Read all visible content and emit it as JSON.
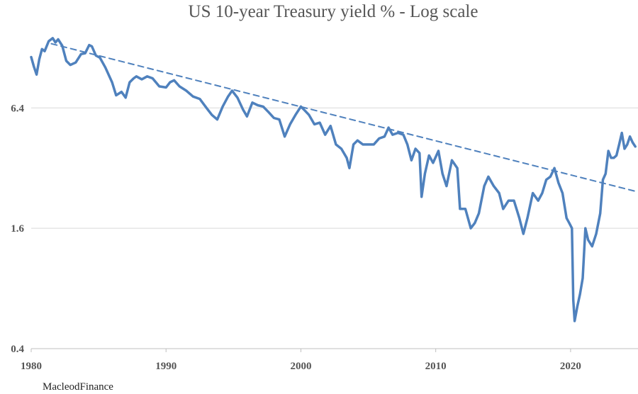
{
  "chart_data": {
    "type": "line",
    "title": "US 10-year Treasury yield % - Log scale",
    "xlabel": "",
    "ylabel": "",
    "y_scale": "log2",
    "xlim": [
      1980,
      2025
    ],
    "ylim": [
      0.4,
      16
    ],
    "x_ticks": [
      "1980",
      "1990",
      "2000",
      "2010",
      "2020"
    ],
    "y_ticks": [
      "0.4",
      "1.6",
      "6.4"
    ],
    "grid": "horizontal",
    "colors": {
      "series": "#4F81BD",
      "trend": "#4F81BD",
      "grid": "#D9D9D9",
      "axis": "#BFBFBF"
    },
    "series": [
      {
        "style": "solid",
        "x": [
          1980.0,
          1980.2,
          1980.4,
          1980.6,
          1980.8,
          1981.0,
          1981.3,
          1981.6,
          1981.8,
          1982.0,
          1982.3,
          1982.6,
          1982.9,
          1983.3,
          1983.7,
          1984.0,
          1984.3,
          1984.5,
          1984.8,
          1985.1,
          1985.5,
          1986.0,
          1986.3,
          1986.7,
          1987.0,
          1987.3,
          1987.6,
          1987.8,
          1988.2,
          1988.6,
          1989.0,
          1989.5,
          1990.0,
          1990.3,
          1990.6,
          1991.0,
          1991.5,
          1992.0,
          1992.5,
          1993.0,
          1993.4,
          1993.8,
          1994.2,
          1994.6,
          1994.9,
          1995.3,
          1995.7,
          1996.0,
          1996.4,
          1996.8,
          1997.2,
          1997.6,
          1998.0,
          1998.4,
          1998.8,
          1999.2,
          1999.6,
          2000.0,
          2000.3,
          2000.6,
          2001.0,
          2001.4,
          2001.8,
          2002.2,
          2002.6,
          2003.0,
          2003.4,
          2003.6,
          2003.9,
          2004.2,
          2004.6,
          2005.0,
          2005.4,
          2005.8,
          2006.2,
          2006.5,
          2006.8,
          2007.2,
          2007.6,
          2007.9,
          2008.2,
          2008.5,
          2008.8,
          2008.95,
          2009.2,
          2009.5,
          2009.8,
          2010.2,
          2010.5,
          2010.8,
          2011.2,
          2011.6,
          2011.8,
          2012.2,
          2012.6,
          2012.9,
          2013.2,
          2013.6,
          2013.9,
          2014.3,
          2014.7,
          2015.0,
          2015.4,
          2015.8,
          2016.2,
          2016.5,
          2016.8,
          2017.2,
          2017.6,
          2017.9,
          2018.2,
          2018.5,
          2018.8,
          2019.1,
          2019.4,
          2019.7,
          2019.9,
          2020.1,
          2020.2,
          2020.3,
          2020.5,
          2020.7,
          2020.9,
          2021.1,
          2021.3,
          2021.6,
          2021.9,
          2022.2,
          2022.4,
          2022.6,
          2022.8,
          2023.0,
          2023.2,
          2023.4,
          2023.6,
          2023.8,
          2024.0,
          2024.2,
          2024.4,
          2024.6,
          2024.8
        ],
        "values": [
          11.5,
          10.3,
          9.4,
          11.2,
          12.6,
          12.3,
          13.8,
          14.3,
          13.6,
          14.1,
          13.1,
          11.0,
          10.5,
          10.8,
          11.9,
          12.0,
          13.2,
          13.0,
          11.7,
          11.4,
          10.2,
          8.6,
          7.4,
          7.7,
          7.2,
          8.6,
          9.0,
          9.2,
          8.9,
          9.2,
          9.0,
          8.2,
          8.1,
          8.6,
          8.8,
          8.2,
          7.8,
          7.3,
          7.1,
          6.4,
          5.9,
          5.6,
          6.5,
          7.3,
          7.8,
          7.2,
          6.3,
          5.8,
          6.8,
          6.6,
          6.5,
          6.1,
          5.7,
          5.6,
          4.6,
          5.3,
          5.9,
          6.5,
          6.2,
          5.9,
          5.3,
          5.4,
          4.7,
          5.2,
          4.2,
          4.0,
          3.6,
          3.2,
          4.2,
          4.4,
          4.2,
          4.2,
          4.2,
          4.5,
          4.6,
          5.1,
          4.7,
          4.8,
          4.7,
          4.2,
          3.5,
          4.0,
          3.8,
          2.3,
          3.0,
          3.7,
          3.4,
          3.9,
          3.0,
          2.6,
          3.5,
          3.2,
          2.0,
          2.0,
          1.6,
          1.7,
          1.9,
          2.6,
          2.9,
          2.6,
          2.4,
          2.0,
          2.2,
          2.2,
          1.8,
          1.5,
          1.8,
          2.4,
          2.2,
          2.4,
          2.8,
          2.9,
          3.2,
          2.7,
          2.4,
          1.8,
          1.7,
          1.6,
          0.7,
          0.55,
          0.65,
          0.75,
          0.9,
          1.6,
          1.4,
          1.3,
          1.5,
          1.9,
          2.8,
          3.0,
          3.9,
          3.6,
          3.6,
          3.7,
          4.2,
          4.8,
          4.0,
          4.2,
          4.6,
          4.3,
          4.1
        ],
        "name": ""
      },
      {
        "style": "dashed",
        "x": [
          1981.5,
          2024.8
        ],
        "values": [
          13.4,
          2.45
        ],
        "name": ""
      }
    ]
  },
  "footer": {
    "source": "MacleodFinance"
  }
}
